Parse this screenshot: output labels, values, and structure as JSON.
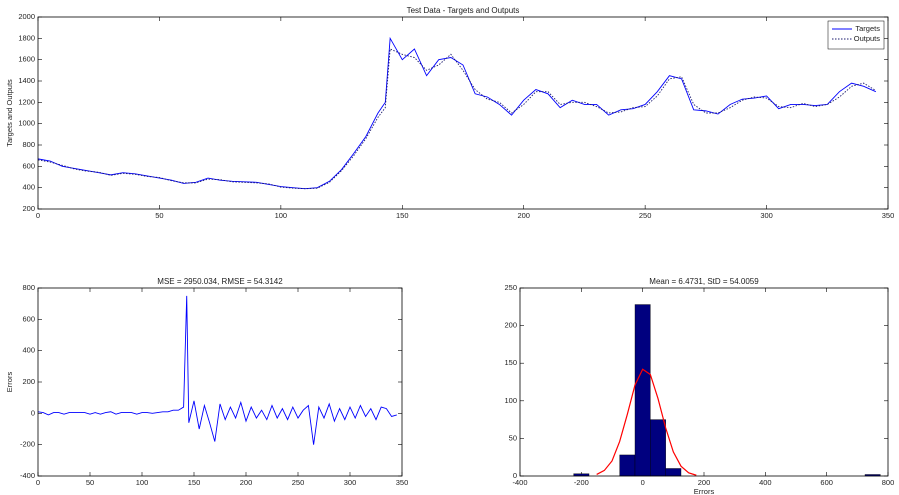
{
  "chart_data": [
    {
      "type": "line",
      "title": "Test Data - Targets and Outputs",
      "ylabel": "Targets and Outputs",
      "x": [
        0,
        5,
        10,
        15,
        20,
        25,
        30,
        35,
        40,
        45,
        50,
        55,
        60,
        65,
        70,
        75,
        80,
        85,
        90,
        95,
        100,
        105,
        110,
        115,
        120,
        125,
        130,
        135,
        140,
        143,
        145,
        150,
        155,
        160,
        165,
        170,
        175,
        180,
        185,
        190,
        195,
        200,
        205,
        210,
        215,
        220,
        225,
        230,
        235,
        240,
        245,
        250,
        255,
        260,
        265,
        270,
        275,
        280,
        285,
        290,
        295,
        300,
        305,
        310,
        315,
        320,
        325,
        330,
        335,
        340,
        345
      ],
      "series": [
        {
          "name": "Targets",
          "color": "#0000ff",
          "dash": "solid",
          "values": [
            670,
            650,
            600,
            580,
            560,
            540,
            520,
            540,
            530,
            510,
            490,
            470,
            440,
            450,
            490,
            470,
            460,
            455,
            450,
            430,
            410,
            400,
            390,
            400,
            460,
            570,
            720,
            880,
            1100,
            1200,
            1800,
            1600,
            1700,
            1450,
            1600,
            1620,
            1550,
            1280,
            1250,
            1180,
            1080,
            1220,
            1320,
            1280,
            1150,
            1220,
            1180,
            1180,
            1080,
            1130,
            1140,
            1180,
            1300,
            1450,
            1420,
            1130,
            1120,
            1090,
            1180,
            1230,
            1240,
            1260,
            1140,
            1180,
            1180,
            1170,
            1180,
            1300,
            1380,
            1350,
            1300
          ]
        },
        {
          "name": "Outputs",
          "color": "#1a1a6e",
          "dash": "dotted",
          "values": [
            660,
            640,
            610,
            575,
            555,
            545,
            515,
            535,
            525,
            505,
            495,
            465,
            445,
            445,
            480,
            475,
            455,
            450,
            445,
            435,
            405,
            395,
            390,
            395,
            450,
            560,
            700,
            860,
            1060,
            1150,
            1700,
            1650,
            1620,
            1500,
            1550,
            1650,
            1500,
            1320,
            1230,
            1200,
            1100,
            1180,
            1300,
            1300,
            1180,
            1200,
            1200,
            1160,
            1100,
            1110,
            1150,
            1160,
            1260,
            1420,
            1440,
            1180,
            1100,
            1100,
            1150,
            1220,
            1250,
            1240,
            1160,
            1150,
            1190,
            1160,
            1180,
            1250,
            1350,
            1380,
            1310
          ]
        }
      ],
      "xlim": [
        0,
        350
      ],
      "xticks": [
        0,
        50,
        100,
        150,
        200,
        250,
        300,
        350
      ],
      "ylim": [
        200,
        2000
      ],
      "yticks": [
        200,
        400,
        600,
        800,
        1000,
        1200,
        1400,
        1600,
        1800,
        2000
      ],
      "legend": "upper right"
    },
    {
      "type": "line",
      "title": "MSE = 2950.034, RMSE = 54.3142",
      "ylabel": "Errors",
      "x": [
        0,
        5,
        10,
        15,
        20,
        25,
        30,
        35,
        40,
        45,
        50,
        55,
        60,
        65,
        70,
        75,
        80,
        85,
        90,
        95,
        100,
        105,
        110,
        115,
        120,
        125,
        130,
        135,
        140,
        143,
        145,
        150,
        155,
        160,
        165,
        170,
        175,
        180,
        185,
        190,
        195,
        200,
        205,
        210,
        215,
        220,
        225,
        230,
        235,
        240,
        245,
        250,
        255,
        260,
        265,
        270,
        275,
        280,
        285,
        290,
        295,
        300,
        305,
        310,
        315,
        320,
        325,
        330,
        335,
        340,
        345
      ],
      "values": [
        10,
        5,
        -10,
        5,
        5,
        -5,
        5,
        5,
        5,
        5,
        -5,
        5,
        -5,
        5,
        10,
        -5,
        5,
        5,
        5,
        -5,
        5,
        5,
        0,
        5,
        10,
        10,
        20,
        20,
        40,
        750,
        -60,
        80,
        -100,
        50,
        -60,
        -180,
        60,
        -40,
        40,
        -30,
        70,
        -50,
        40,
        -30,
        20,
        -40,
        50,
        -30,
        30,
        -40,
        40,
        -30,
        20,
        50,
        -200,
        40,
        -30,
        60,
        -50,
        30,
        -40,
        40,
        -30,
        50,
        -20,
        30,
        -40,
        40,
        30,
        -20,
        -10
      ],
      "color": "#0000ff",
      "xlim": [
        0,
        350
      ],
      "xticks": [
        0,
        50,
        100,
        150,
        200,
        250,
        300,
        350
      ],
      "ylim": [
        -400,
        800
      ],
      "yticks": [
        -400,
        -200,
        0,
        200,
        400,
        600,
        800
      ]
    },
    {
      "type": "histogram",
      "title": "Mean = 6.4731, StD = 54.0059",
      "xlabel": "Errors",
      "bins": [
        -225,
        -175,
        -125,
        -75,
        -25,
        25,
        75,
        125,
        175,
        225,
        275,
        325,
        375,
        425,
        475,
        525,
        575,
        625,
        675,
        725,
        775
      ],
      "values": [
        3,
        0,
        0,
        28,
        228,
        75,
        10,
        0,
        0,
        0,
        0,
        0,
        0,
        0,
        0,
        0,
        0,
        0,
        0,
        2
      ],
      "color": "#00007f",
      "curve": {
        "x": [
          -150,
          -125,
          -100,
          -75,
          -50,
          -25,
          0,
          25,
          50,
          75,
          100,
          125,
          150,
          175
        ],
        "values": [
          2.1,
          7.4,
          20,
          46,
          82,
          121,
          142,
          135,
          103,
          64,
          32,
          13,
          4.2,
          1
        ],
        "color": "#ff0000"
      },
      "xlim": [
        -400,
        800
      ],
      "xticks": [
        -400,
        -200,
        0,
        200,
        400,
        600,
        800
      ],
      "ylim": [
        0,
        250
      ],
      "yticks": [
        0,
        50,
        100,
        150,
        200,
        250
      ]
    }
  ]
}
